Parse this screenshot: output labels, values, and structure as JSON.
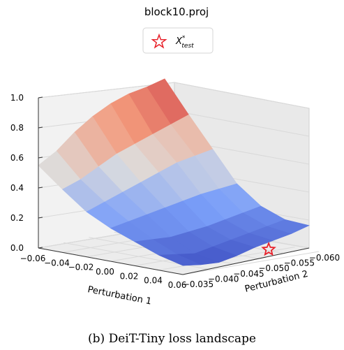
{
  "caption": "(b) DeiT-Tiny loss landscape",
  "chart_data": {
    "type": "surface3d",
    "title": "block10.proj",
    "xlabel": "Perturbation 1",
    "ylabel": "Perturbation 2",
    "zlabel": "",
    "x_ticks": [
      "-0.06",
      "-0.04",
      "-0.02",
      "0.00",
      "0.02",
      "0.04",
      "0.06"
    ],
    "y_ticks": [
      "-0.035",
      "-0.040",
      "-0.045",
      "-0.050",
      "-0.055",
      "-0.060"
    ],
    "z_ticks": [
      "0.0",
      "0.2",
      "0.4",
      "0.6",
      "0.8",
      "1.0"
    ],
    "xlim": [
      -0.06,
      0.06
    ],
    "ylim": [
      -0.06,
      -0.035
    ],
    "zlim": [
      0.0,
      1.0
    ],
    "colormap": "coolwarm",
    "legend": {
      "placement": "top-center",
      "entries": [
        {
          "label": "X*_test",
          "marker": "star",
          "color": "#e8212a"
        }
      ]
    },
    "surface_rows": [
      {
        "x": -0.06,
        "z": [
          0.55,
          0.62,
          0.72,
          0.8,
          0.86,
          0.9,
          0.92,
          0.95
        ]
      },
      {
        "x": -0.04,
        "z": [
          0.42,
          0.46,
          0.52,
          0.58,
          0.62,
          0.66,
          0.7,
          0.74
        ]
      },
      {
        "x": -0.02,
        "z": [
          0.3,
          0.34,
          0.38,
          0.42,
          0.46,
          0.5,
          0.52,
          0.54
        ]
      },
      {
        "x": 0.0,
        "z": [
          0.22,
          0.24,
          0.26,
          0.28,
          0.3,
          0.32,
          0.33,
          0.34
        ]
      },
      {
        "x": 0.02,
        "z": [
          0.16,
          0.15,
          0.14,
          0.15,
          0.16,
          0.18,
          0.2,
          0.22
        ]
      },
      {
        "x": 0.04,
        "z": [
          0.1,
          0.08,
          0.06,
          0.08,
          0.1,
          0.12,
          0.14,
          0.16
        ]
      },
      {
        "x": 0.06,
        "z": [
          0.06,
          0.04,
          0.03,
          0.05,
          0.08,
          0.1,
          0.12,
          0.15
        ]
      }
    ],
    "marker_point": {
      "x": 0.06,
      "y": -0.043,
      "z": 0.0
    },
    "grid": true
  }
}
